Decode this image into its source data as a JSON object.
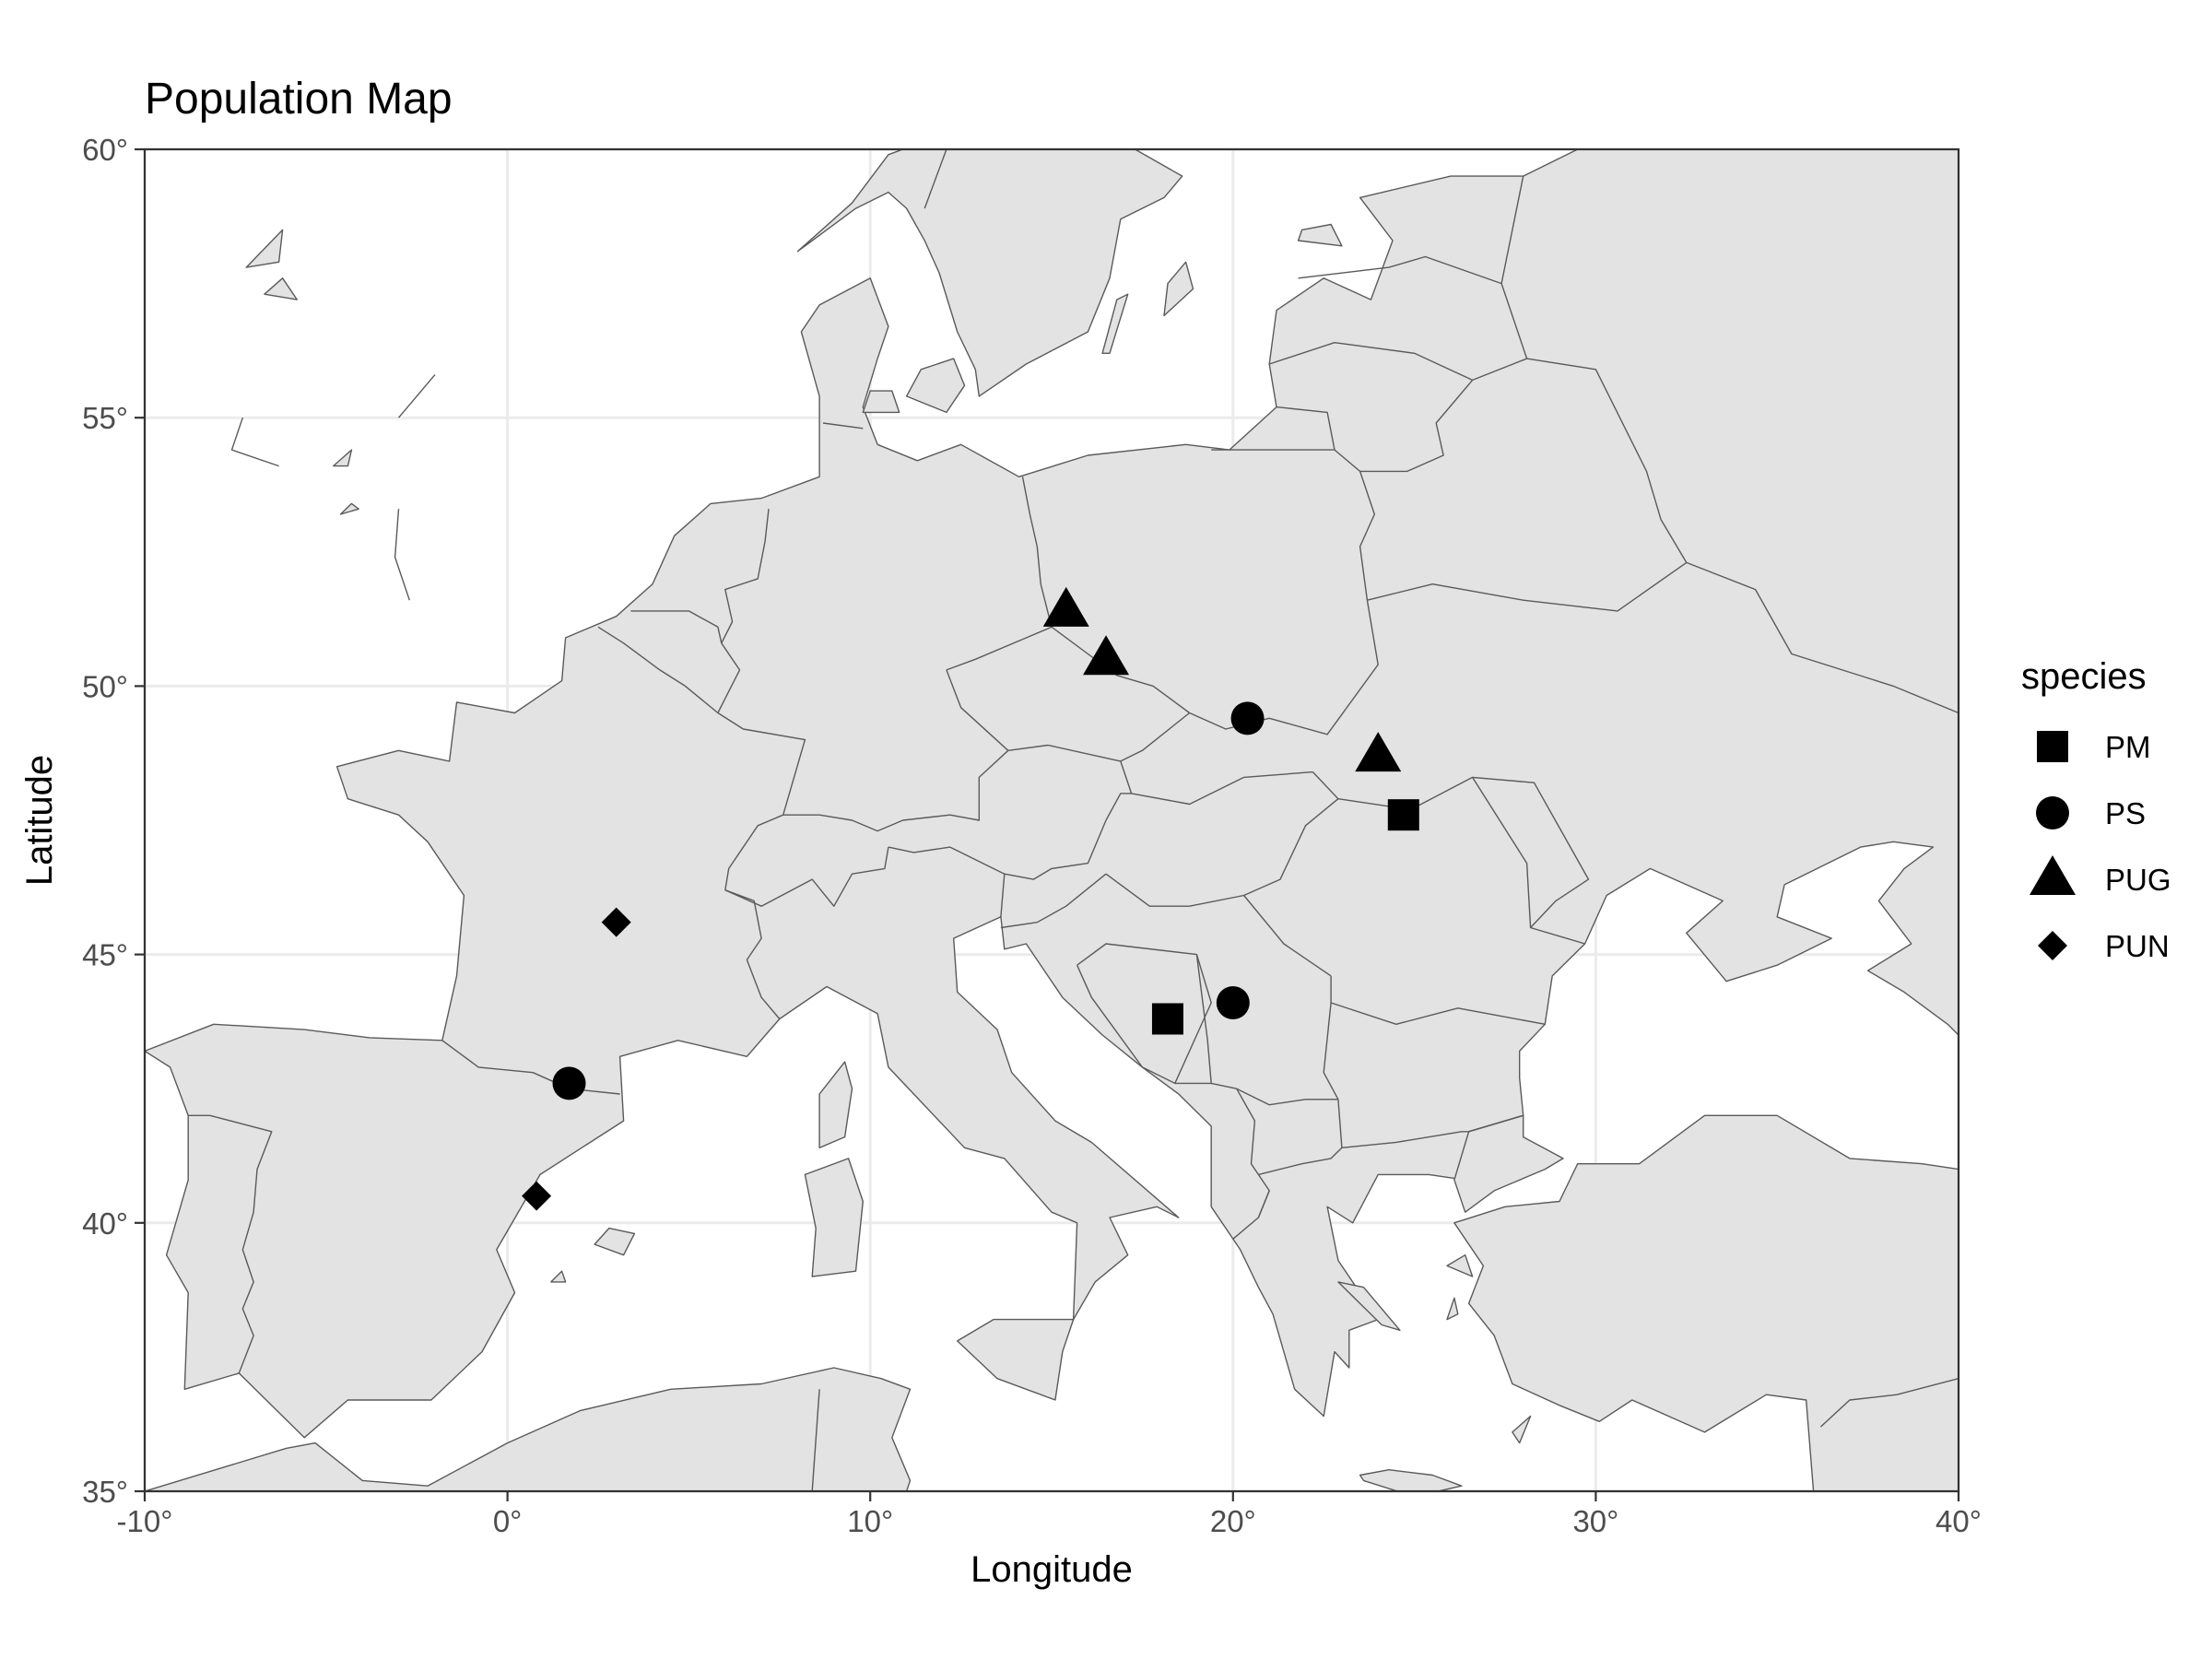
{
  "chart_data": {
    "type": "scatter",
    "title": "Population Map",
    "xlabel": "Longitude",
    "ylabel": "Latitude",
    "xlim": [
      -10,
      40
    ],
    "ylim": [
      35,
      60
    ],
    "x_ticks": [
      -10,
      0,
      10,
      20,
      30,
      40
    ],
    "y_ticks": [
      35,
      40,
      45,
      50,
      55,
      60
    ],
    "x_tick_labels": [
      "-10°",
      "0°",
      "10°",
      "20°",
      "30°",
      "40°"
    ],
    "y_tick_labels": [
      "35°",
      "40°",
      "45°",
      "50°",
      "55°",
      "60°"
    ],
    "grid": true,
    "basemap": "Europe country polygons, light grey fill",
    "legend": {
      "title": "species",
      "placement": "right",
      "entries": [
        {
          "label": "PM",
          "shape": "square"
        },
        {
          "label": "PS",
          "shape": "circle"
        },
        {
          "label": "PUG",
          "shape": "triangle"
        },
        {
          "label": "PUN",
          "shape": "diamond"
        }
      ]
    },
    "series": [
      {
        "name": "PM",
        "shape": "square",
        "points": [
          {
            "lon": 18.2,
            "lat": 43.8
          },
          {
            "lon": 24.7,
            "lat": 47.6
          }
        ]
      },
      {
        "name": "PS",
        "shape": "circle",
        "points": [
          {
            "lon": 1.7,
            "lat": 42.6
          },
          {
            "lon": 20.0,
            "lat": 44.1
          },
          {
            "lon": 20.4,
            "lat": 49.4
          }
        ]
      },
      {
        "name": "PUG",
        "shape": "triangle",
        "points": [
          {
            "lon": 15.4,
            "lat": 51.4
          },
          {
            "lon": 16.5,
            "lat": 50.5
          },
          {
            "lon": 24.0,
            "lat": 48.7
          }
        ]
      },
      {
        "name": "PUN",
        "shape": "diamond",
        "points": [
          {
            "lon": 3.0,
            "lat": 45.6
          },
          {
            "lon": 0.8,
            "lat": 40.5
          }
        ]
      }
    ],
    "colors": {
      "points": "#000000",
      "land": "#e3e3e3",
      "border": "#5a5a5a",
      "grid": "#ebebeb",
      "tick_label": "#4d4d4d"
    }
  }
}
